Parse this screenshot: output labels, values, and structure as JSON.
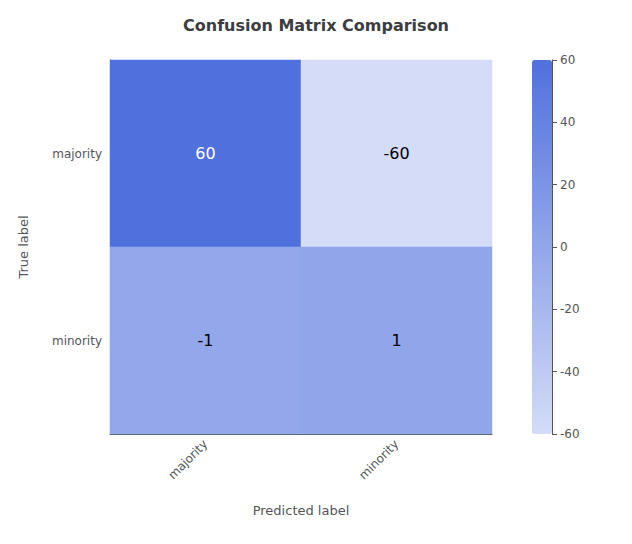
{
  "chart_data": {
    "type": "heatmap",
    "title": "Confusion Matrix Comparison",
    "xlabel": "Predicted label",
    "ylabel": "True label",
    "columns": [
      "majority",
      "minority"
    ],
    "rows": [
      "majority",
      "minority"
    ],
    "matrix": [
      [
        60,
        -60
      ],
      [
        -1,
        1
      ]
    ],
    "colorbar_range": [
      -60,
      60
    ],
    "colorbar_ticks": [
      60,
      40,
      20,
      0,
      -20,
      -40,
      -60
    ],
    "data_labels": true,
    "grid": false
  }
}
